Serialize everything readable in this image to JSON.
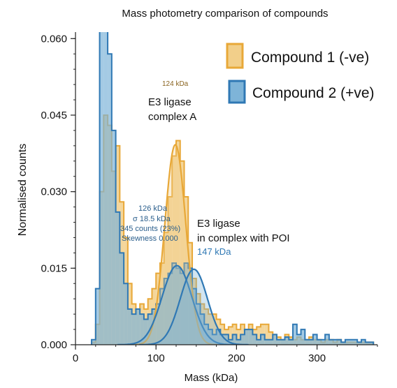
{
  "chart_data": {
    "type": "histogram",
    "title": "Mass photometry comparison of compounds",
    "xlabel": "Mass (kDa)",
    "ylabel": "Normalised counts",
    "xlim": [
      0,
      375
    ],
    "ylim": [
      0,
      0.061
    ],
    "x_ticks": [
      0,
      100,
      200,
      300
    ],
    "y_ticks": [
      0.0,
      0.015,
      0.03,
      0.045,
      0.06
    ],
    "x_tick_labels": [
      "0",
      "100",
      "200",
      "300"
    ],
    "y_tick_labels": [
      "0.000",
      "0.015",
      "0.030",
      "0.045",
      "0.060"
    ],
    "legend_position": "top-right",
    "bin_width": 5,
    "series": [
      {
        "name": "Compound 1 (-ve)",
        "color": "#e8a838",
        "fill": "#f2cf8a",
        "bins_start": 20,
        "values": [
          0.0005,
          0.004,
          0.03,
          0.045,
          0.043,
          0.034,
          0.039,
          0.028,
          0.021,
          0.012,
          0.008,
          0.007,
          0.008,
          0.007,
          0.009,
          0.011,
          0.014,
          0.016,
          0.022,
          0.029,
          0.037,
          0.04,
          0.036,
          0.029,
          0.02,
          0.013,
          0.01,
          0.008,
          0.007,
          0.006,
          0.006,
          0.005,
          0.004,
          0.003,
          0.0035,
          0.004,
          0.003,
          0.004,
          0.003,
          0.004,
          0.003,
          0.0035,
          0.004,
          0.004,
          0.0025,
          0.002,
          0.0015,
          0.001,
          0.002,
          0.0015,
          0.001,
          0.0015,
          0.001,
          0.001,
          0.0015,
          0.001,
          0.001,
          0.0005,
          0.001,
          0.001,
          0.0005,
          0.001,
          0.0005,
          0.0005,
          0.0005,
          0.0005,
          0.0005,
          0.0005,
          0.0005,
          0.0005
        ]
      },
      {
        "name": "Compound 2 (+ve)",
        "color": "#2f78b4",
        "fill": "#7eb4d8",
        "bins_start": 20,
        "values": [
          0.001,
          0.011,
          0.062,
          0.062,
          0.057,
          0.042,
          0.026,
          0.018,
          0.012,
          0.007,
          0.006,
          0.007,
          0.006,
          0.005,
          0.006,
          0.007,
          0.008,
          0.011,
          0.013,
          0.014,
          0.016,
          0.015,
          0.014,
          0.016,
          0.015,
          0.011,
          0.008,
          0.006,
          0.004,
          0.003,
          0.002,
          0.003,
          0.002,
          0.002,
          0.001,
          0.002,
          0.001,
          0.002,
          0.003,
          0.003,
          0.002,
          0.001,
          0.002,
          0.001,
          0.001,
          0.002,
          0.001,
          0.001,
          0.0015,
          0.001,
          0.004,
          0.002,
          0.003,
          0.001,
          0.001,
          0.002,
          0.001,
          0.001,
          0.002,
          0.001,
          0.001,
          0.001,
          0.0005,
          0.001,
          0.001,
          0.001,
          0.0005,
          0.001,
          0.0005,
          0.0005
        ]
      }
    ],
    "fits": [
      {
        "series": "Compound 1 (-ve)",
        "mean": 124,
        "sigma": 13,
        "amplitude": 0.0392
      },
      {
        "series": "Compound 2 (+ve)",
        "mean": 126,
        "sigma": 18.5,
        "amplitude": 0.0155
      },
      {
        "series": "Compound 2 (+ve)",
        "mean": 147,
        "sigma": 17,
        "amplitude": 0.0148
      }
    ],
    "annotations": {
      "peak_label_1": "124 kDa",
      "complex_a_line1": "E3 ligase",
      "complex_a_line2": "complex A",
      "fit_mass": "126 kDa",
      "fit_sigma": "σ 18.5 kDa",
      "fit_counts": "345 counts (23%)",
      "fit_skewness": "Skewness 0.000",
      "poi_line1": "E3 ligase",
      "poi_line2": "in complex with POI",
      "peak_label_2": "147 kDa"
    }
  }
}
